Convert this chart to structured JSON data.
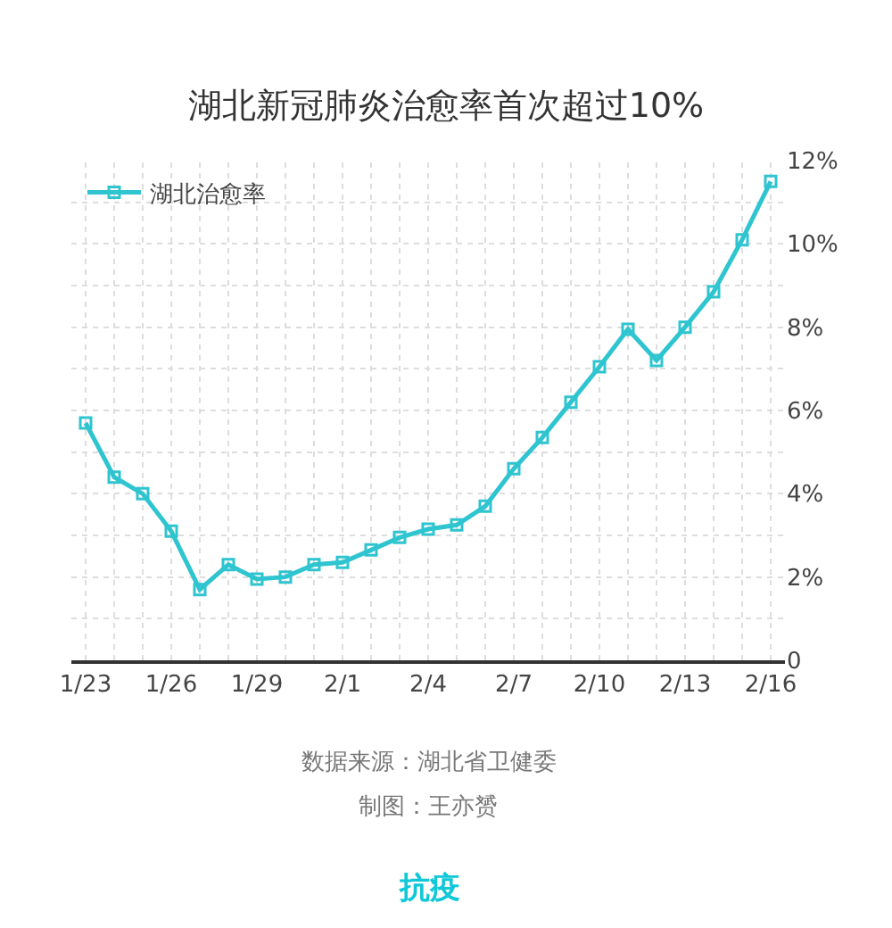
{
  "chart_data": {
    "type": "line",
    "title": "湖北新冠肺炎治愈率首次超过10%",
    "categories": [
      "1/23",
      null,
      null,
      "1/26",
      null,
      null,
      "1/29",
      null,
      null,
      "2/1",
      null,
      null,
      "2/4",
      null,
      null,
      "2/7",
      null,
      null,
      "2/10",
      null,
      null,
      "2/13",
      null,
      null,
      "2/16"
    ],
    "series": [
      {
        "name": "湖北治愈率",
        "color": "#2ec4d0",
        "values": [
          5.7,
          4.4,
          4.0,
          3.1,
          1.7,
          2.3,
          1.95,
          2.0,
          2.3,
          2.35,
          2.65,
          2.95,
          3.15,
          3.25,
          3.7,
          4.6,
          5.35,
          6.2,
          7.05,
          7.95,
          7.2,
          8.0,
          8.85,
          10.1,
          11.5
        ]
      }
    ],
    "ylim": [
      0,
      12
    ],
    "yticks": [
      {
        "value": 0,
        "label": "0"
      },
      {
        "value": 1,
        "label": null
      },
      {
        "value": 2,
        "label": "2%"
      },
      {
        "value": 3,
        "label": null
      },
      {
        "value": 4,
        "label": "4%"
      },
      {
        "value": 5,
        "label": null
      },
      {
        "value": 6,
        "label": "6%"
      },
      {
        "value": 7,
        "label": null
      },
      {
        "value": 8,
        "label": "8%"
      },
      {
        "value": 9,
        "label": null
      },
      {
        "value": 10,
        "label": "10%"
      },
      {
        "value": 11,
        "label": null
      },
      {
        "value": 12,
        "label": "12%"
      }
    ],
    "grid": true,
    "legend": "top left",
    "marker": "square",
    "line_style": "solid",
    "annotations": [
      "数据来源：湖北省卫健委",
      "制图：王亦赟",
      "抗疫"
    ]
  }
}
